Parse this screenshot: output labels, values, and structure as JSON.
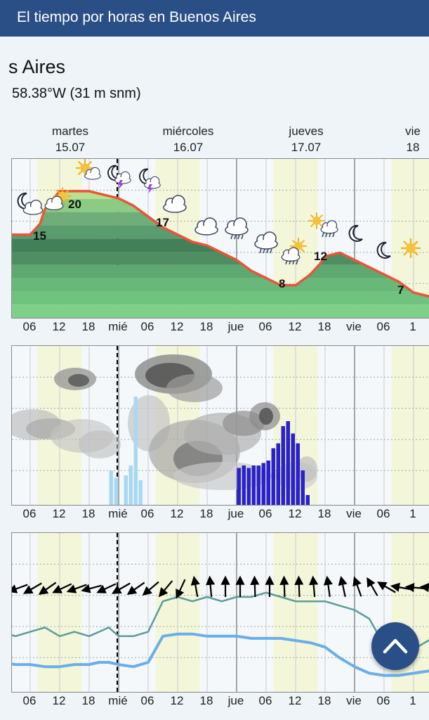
{
  "header": {
    "title": "El tiempo por horas en Buenos Aires"
  },
  "location": {
    "name_partial": "s Aires",
    "coords": "58.38°W (31 m snm)"
  },
  "days": [
    {
      "name": "martes",
      "date": "15.07"
    },
    {
      "name": "miércoles",
      "date": "16.07"
    },
    {
      "name": "jueves",
      "date": "17.07"
    },
    {
      "name": "vie",
      "date": "18"
    }
  ],
  "tick_labels": [
    "06",
    "12",
    "18",
    "mié",
    "06",
    "12",
    "18",
    "jue",
    "06",
    "12",
    "18",
    "vie",
    "06",
    "1"
  ],
  "temperature_chart": {
    "type": "line",
    "unit": "°C",
    "x_hours": [
      0,
      3,
      6,
      8,
      9,
      12,
      15,
      18,
      21,
      24,
      27,
      30,
      33,
      36,
      39,
      42,
      45,
      48,
      51,
      54,
      57,
      60,
      63,
      65,
      66,
      69,
      72,
      75,
      78,
      81,
      84,
      87,
      90
    ],
    "y_temp": [
      15,
      15,
      15,
      16.5,
      18.5,
      21,
      21,
      21,
      20.5,
      20,
      19,
      17.5,
      16,
      15,
      14,
      13.5,
      12.5,
      11.5,
      10,
      9,
      8,
      8,
      9.5,
      11,
      12,
      12.5,
      11.5,
      10.5,
      9.5,
      8.5,
      7,
      6.5,
      6
    ],
    "labels": [
      {
        "text": "15"
      },
      {
        "text": "20"
      },
      {
        "text": "17"
      },
      {
        "text": "8"
      },
      {
        "text": "12"
      },
      {
        "text": "7"
      }
    ],
    "line_color": "#e8553a"
  },
  "weather_icons": [
    "moon-cloud-icon",
    "sun-cloud-icon",
    "sun-cloud-icon",
    "moon-storm-icon",
    "moon-storm-icon",
    "cloud-icon",
    "cloud-icon",
    "rain-cloud-icon",
    "rain-cloud-icon",
    "rain-sun-icon",
    "sun-rain-icon",
    "moon-icon",
    "moon-icon",
    "sun-icon"
  ],
  "precip_chart": {
    "type": "bar",
    "light_color": "#a9d9f2",
    "heavy_color": "#2a22c8",
    "light_bars_hours": [
      22,
      23,
      25,
      26,
      27,
      28
    ],
    "light_bars_mm": [
      1.4,
      1.1,
      1.2,
      1.6,
      4.4,
      1.0
    ],
    "heavy_bars_hours": [
      48,
      49,
      50,
      51,
      52,
      53,
      54,
      55,
      56,
      57,
      58,
      59,
      60,
      61,
      62
    ],
    "heavy_bars_mm": [
      1.5,
      1.6,
      1.5,
      1.6,
      1.6,
      1.7,
      1.8,
      2.3,
      2.5,
      3.2,
      3.4,
      2.9,
      2.5,
      1.4,
      0.4
    ]
  },
  "wind_chart": {
    "type": "line",
    "gust_color": "#5c9c9a",
    "wind_color": "#6aaee8",
    "x_hours": [
      0,
      3,
      6,
      9,
      12,
      15,
      18,
      20,
      22,
      24,
      27,
      30,
      33,
      36,
      39,
      42,
      45,
      48,
      51,
      54,
      57,
      60,
      63,
      66,
      69,
      72,
      75,
      78,
      81,
      84,
      87,
      90
    ],
    "gusts": [
      12,
      11,
      12,
      13,
      11,
      12,
      11,
      12,
      13,
      11,
      11,
      12,
      19,
      20,
      19,
      20,
      19,
      20,
      20,
      21,
      20,
      19,
      19,
      19,
      18,
      17,
      15,
      9,
      7,
      8,
      10,
      11
    ],
    "wind": [
      5,
      4.5,
      4.5,
      4,
      4,
      4.5,
      4.5,
      5,
      5,
      4.5,
      4,
      5,
      11,
      11.5,
      11.5,
      11,
      11,
      11,
      10.5,
      10.5,
      10.5,
      10,
      9.5,
      8.5,
      6,
      4,
      2.5,
      2,
      2,
      2.5,
      3,
      3
    ]
  },
  "scroll_top_button": {
    "icon": "chevron-up-icon",
    "color": "#2a4f86"
  }
}
